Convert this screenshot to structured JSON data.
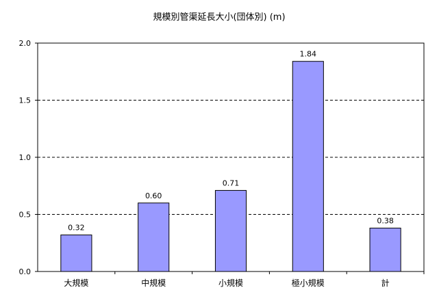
{
  "chart_data": {
    "type": "bar",
    "title": "規模別管渠延長大小(団体別) (m)",
    "categories": [
      "大規模",
      "中規模",
      "小規模",
      "極小規模",
      "計"
    ],
    "values": [
      0.32,
      0.6,
      0.71,
      1.84,
      0.38
    ],
    "data_labels": [
      "0.32",
      "0.60",
      "0.71",
      "1.84",
      "0.38"
    ],
    "y_ticks": [
      "0.0",
      "0.5",
      "1.0",
      "1.5",
      "2.0"
    ],
    "ylim": [
      0,
      2.0
    ],
    "grid": "horizontal dashed",
    "bar_color": "#9999ff",
    "bar_stroke": "#000000"
  }
}
